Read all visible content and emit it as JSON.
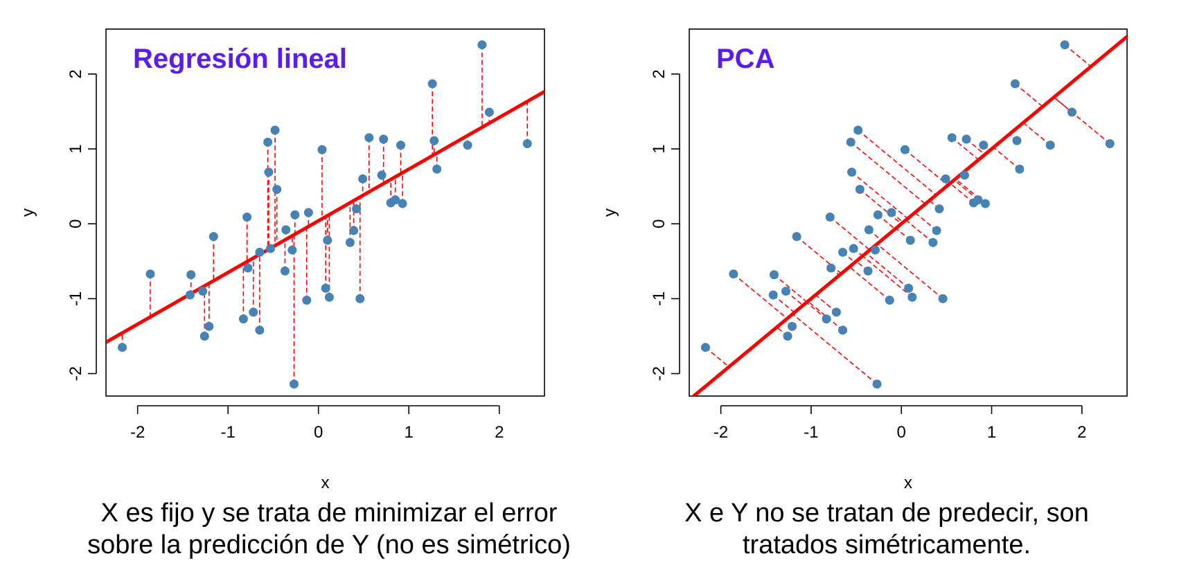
{
  "colors": {
    "point": "#4682b4",
    "line": "#ff0000",
    "residual": "#ff0000",
    "title": "#5b1cf2",
    "axis": "#000000"
  },
  "chart_data": [
    {
      "type": "scatter",
      "title": "Regresión lineal",
      "xlabel": "x",
      "ylabel": "y",
      "xlim": [
        -2.35,
        2.5
      ],
      "ylim": [
        -2.3,
        2.6
      ],
      "xticks": [
        "-2",
        "-1",
        "0",
        "1",
        "2"
      ],
      "yticks": [
        "-2",
        "-1",
        "0",
        "1",
        "2"
      ],
      "fit": {
        "intercept": 0.04,
        "slope": 0.69
      },
      "residuals": "vertical",
      "points": [
        [
          -2.17,
          -1.65
        ],
        [
          -1.86,
          -0.67
        ],
        [
          -1.41,
          -0.68
        ],
        [
          -1.42,
          -0.95
        ],
        [
          -1.28,
          -0.9
        ],
        [
          -1.26,
          -1.5
        ],
        [
          -1.21,
          -1.37
        ],
        [
          -1.16,
          -0.17
        ],
        [
          -0.83,
          -1.27
        ],
        [
          -0.79,
          0.09
        ],
        [
          -0.78,
          -0.59
        ],
        [
          -0.72,
          -1.18
        ],
        [
          -0.65,
          -1.42
        ],
        [
          -0.65,
          -0.38
        ],
        [
          -0.56,
          1.09
        ],
        [
          -0.55,
          0.69
        ],
        [
          -0.53,
          -0.33
        ],
        [
          -0.48,
          1.25
        ],
        [
          -0.46,
          0.46
        ],
        [
          -0.37,
          -0.63
        ],
        [
          -0.36,
          -0.08
        ],
        [
          -0.29,
          -0.35
        ],
        [
          -0.27,
          -2.14
        ],
        [
          -0.26,
          0.12
        ],
        [
          -0.13,
          -1.02
        ],
        [
          -0.11,
          0.15
        ],
        [
          0.04,
          0.99
        ],
        [
          0.08,
          -0.86
        ],
        [
          0.1,
          -0.22
        ],
        [
          0.12,
          -0.98
        ],
        [
          0.35,
          -0.25
        ],
        [
          0.39,
          -0.09
        ],
        [
          0.42,
          0.2
        ],
        [
          0.46,
          -1.0
        ],
        [
          0.49,
          0.6
        ],
        [
          0.56,
          1.15
        ],
        [
          0.7,
          0.65
        ],
        [
          0.72,
          1.13
        ],
        [
          0.8,
          0.28
        ],
        [
          0.85,
          0.32
        ],
        [
          0.91,
          1.05
        ],
        [
          0.93,
          0.27
        ],
        [
          1.26,
          1.87
        ],
        [
          1.28,
          1.11
        ],
        [
          1.31,
          0.73
        ],
        [
          1.65,
          1.05
        ],
        [
          1.81,
          2.39
        ],
        [
          1.89,
          1.49
        ],
        [
          2.31,
          1.07
        ]
      ]
    },
    {
      "type": "scatter",
      "title": "PCA",
      "xlabel": "x",
      "ylabel": "y",
      "xlim": [
        -2.35,
        2.5
      ],
      "ylim": [
        -2.3,
        2.6
      ],
      "xticks": [
        "-2",
        "-1",
        "0",
        "1",
        "2"
      ],
      "yticks": [
        "-2",
        "-1",
        "0",
        "1",
        "2"
      ],
      "fit": {
        "intercept": 0.0,
        "slope": 1.0
      },
      "residuals": "orthogonal",
      "points": [
        [
          -2.17,
          -1.65
        ],
        [
          -1.86,
          -0.67
        ],
        [
          -1.41,
          -0.68
        ],
        [
          -1.42,
          -0.95
        ],
        [
          -1.28,
          -0.9
        ],
        [
          -1.26,
          -1.5
        ],
        [
          -1.21,
          -1.37
        ],
        [
          -1.16,
          -0.17
        ],
        [
          -0.83,
          -1.27
        ],
        [
          -0.79,
          0.09
        ],
        [
          -0.78,
          -0.59
        ],
        [
          -0.72,
          -1.18
        ],
        [
          -0.65,
          -1.42
        ],
        [
          -0.65,
          -0.38
        ],
        [
          -0.56,
          1.09
        ],
        [
          -0.55,
          0.69
        ],
        [
          -0.53,
          -0.33
        ],
        [
          -0.48,
          1.25
        ],
        [
          -0.46,
          0.46
        ],
        [
          -0.37,
          -0.63
        ],
        [
          -0.36,
          -0.08
        ],
        [
          -0.29,
          -0.35
        ],
        [
          -0.27,
          -2.14
        ],
        [
          -0.26,
          0.12
        ],
        [
          -0.13,
          -1.02
        ],
        [
          -0.11,
          0.15
        ],
        [
          0.04,
          0.99
        ],
        [
          0.08,
          -0.86
        ],
        [
          0.1,
          -0.22
        ],
        [
          0.12,
          -0.98
        ],
        [
          0.35,
          -0.25
        ],
        [
          0.39,
          -0.09
        ],
        [
          0.42,
          0.2
        ],
        [
          0.46,
          -1.0
        ],
        [
          0.49,
          0.6
        ],
        [
          0.56,
          1.15
        ],
        [
          0.7,
          0.65
        ],
        [
          0.72,
          1.13
        ],
        [
          0.8,
          0.28
        ],
        [
          0.85,
          0.32
        ],
        [
          0.91,
          1.05
        ],
        [
          0.93,
          0.27
        ],
        [
          1.26,
          1.87
        ],
        [
          1.28,
          1.11
        ],
        [
          1.31,
          0.73
        ],
        [
          1.65,
          1.05
        ],
        [
          1.81,
          2.39
        ],
        [
          1.89,
          1.49
        ],
        [
          2.31,
          1.07
        ]
      ]
    }
  ],
  "captions": [
    {
      "line1": "X es fijo y se trata de minimizar el error",
      "line2": "sobre la predicción de Y (no es simétrico)"
    },
    {
      "line1": "X e Y no se tratan de predecir, son",
      "line2": "tratados simétricamente."
    }
  ]
}
